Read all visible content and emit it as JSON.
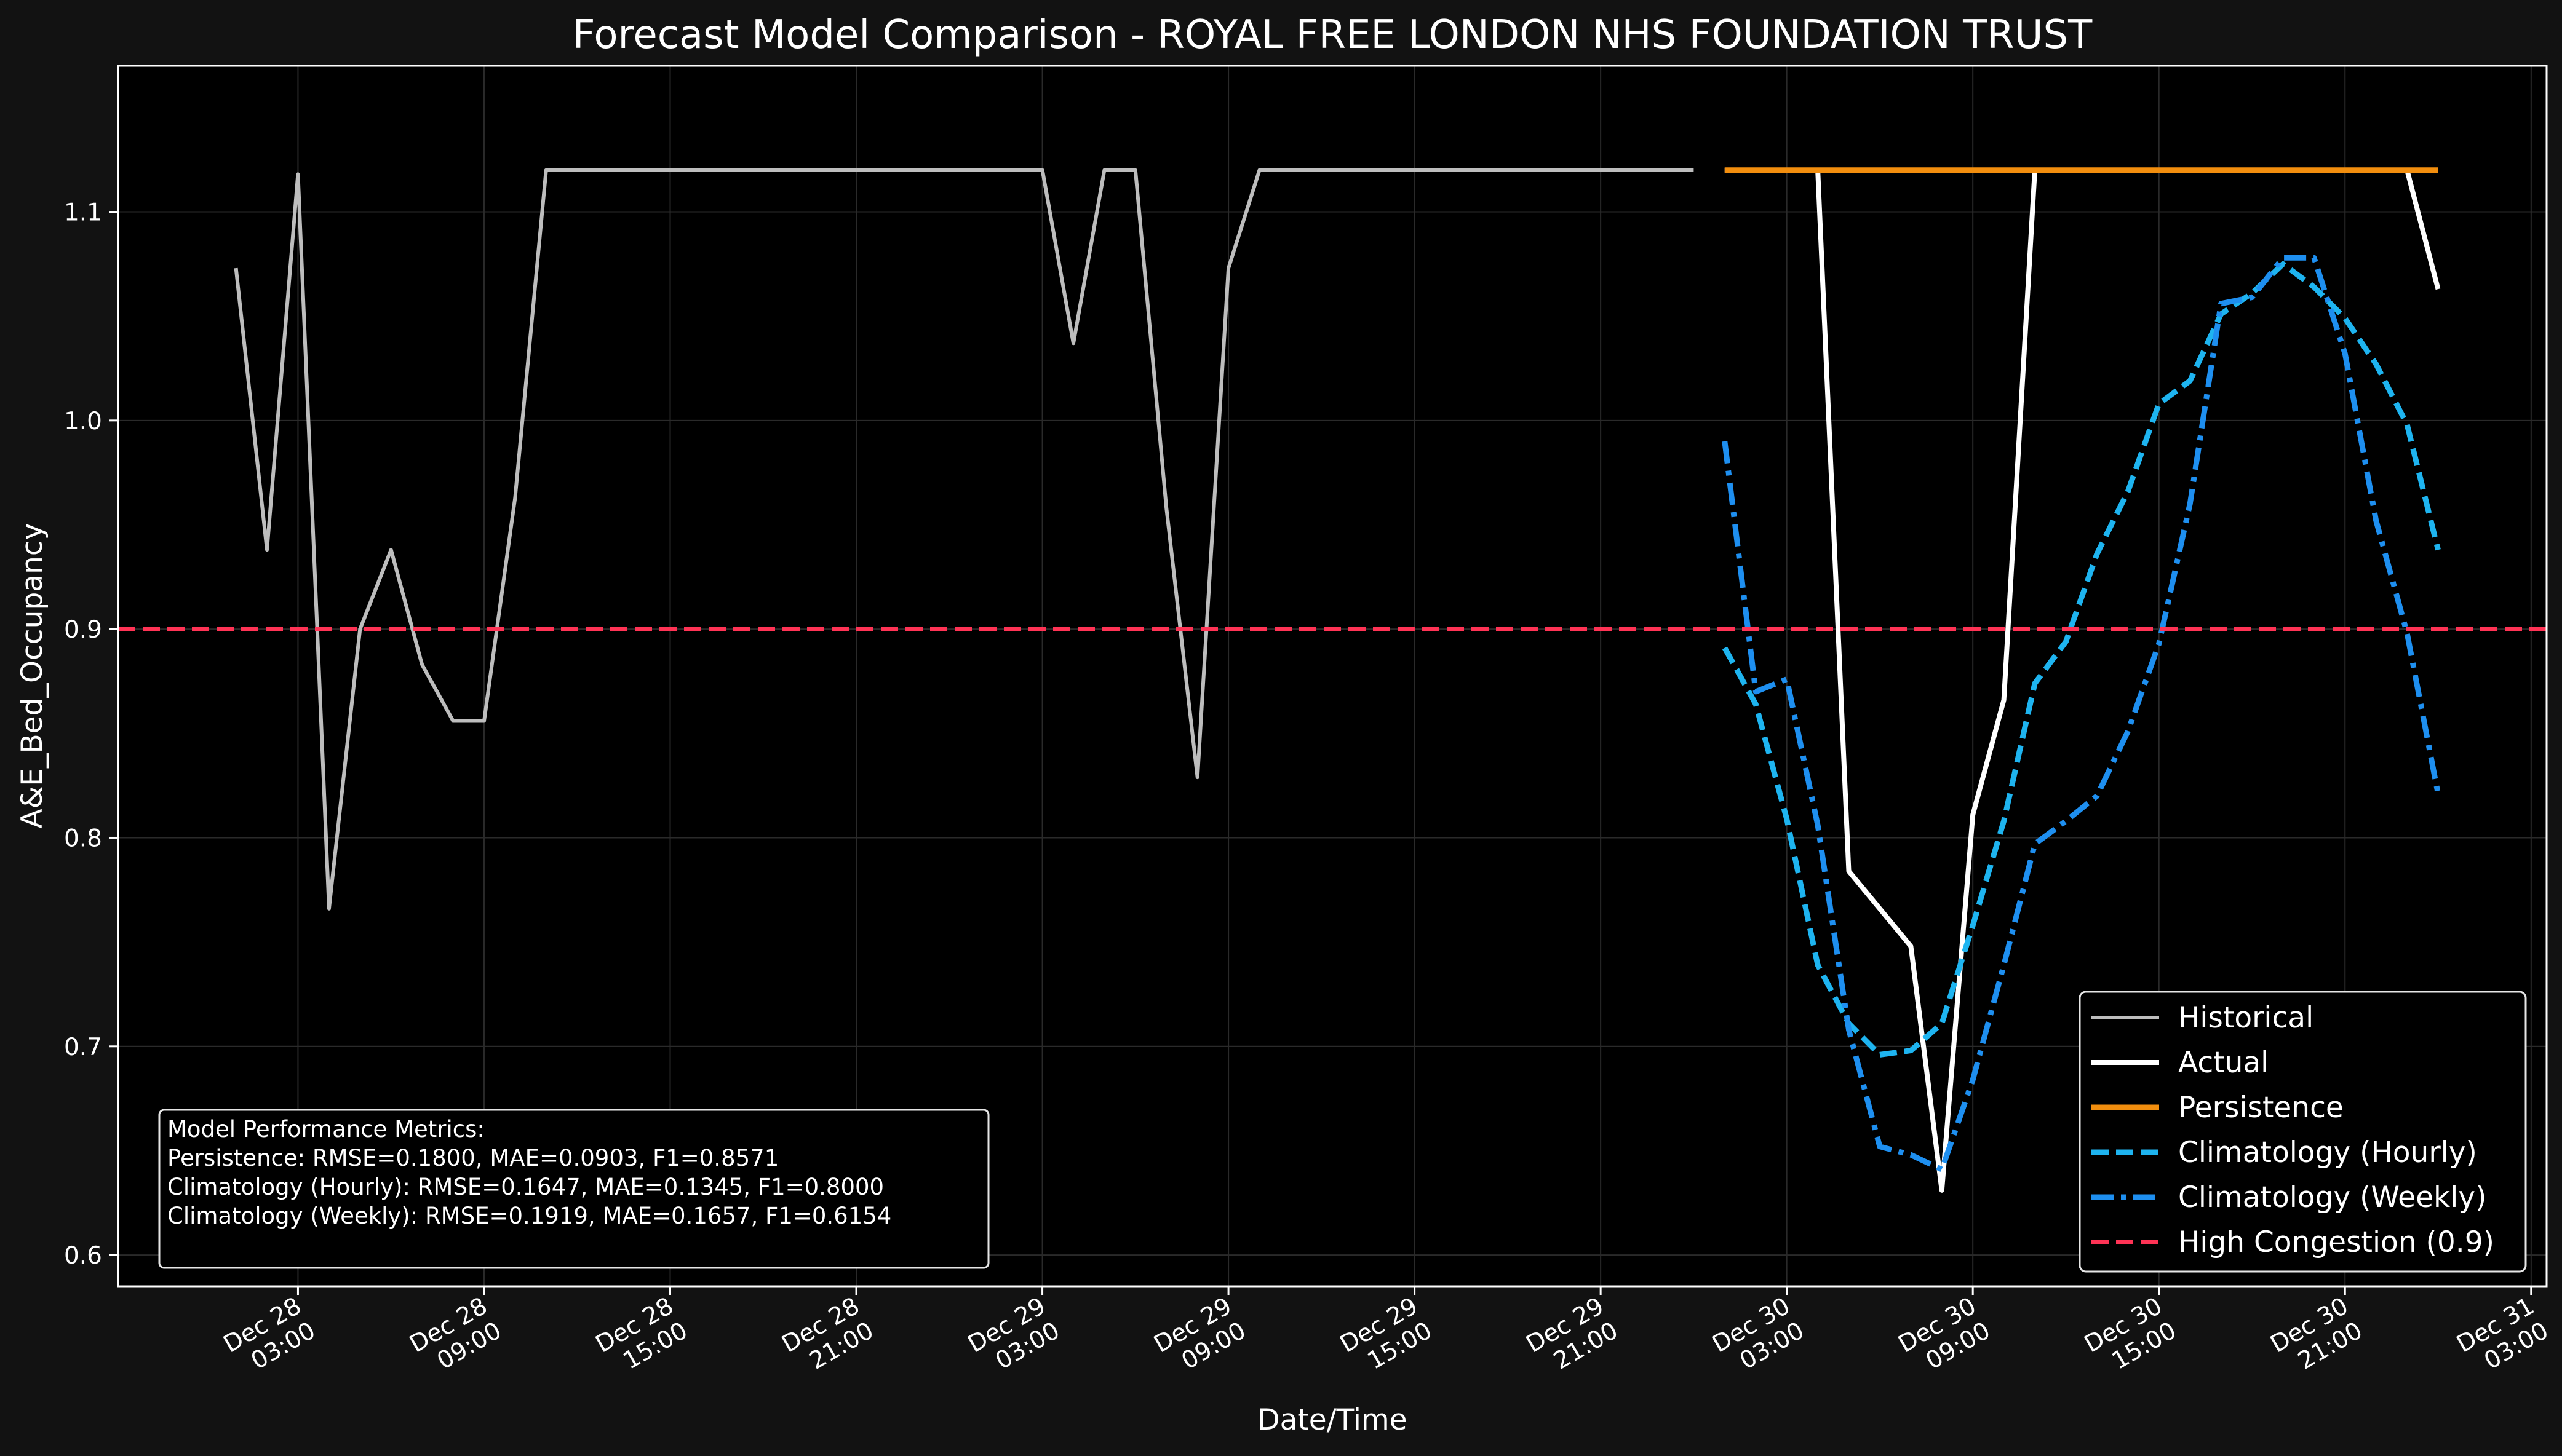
{
  "chart_data": {
    "type": "line",
    "title": "Forecast Model Comparison - ROYAL FREE LONDON NHS FOUNDATION TRUST",
    "xlabel": "Date/Time",
    "ylabel": "A&E_Bed_Occupancy",
    "ylim": [
      0.585,
      1.17
    ],
    "xlim_hours": [
      -2.8,
      75.5
    ],
    "grid": true,
    "legend_position": "lower-right",
    "x_ticks": [
      {
        "h": 3,
        "line1": "Dec 28",
        "line2": "03:00"
      },
      {
        "h": 9,
        "line1": "Dec 28",
        "line2": "09:00"
      },
      {
        "h": 15,
        "line1": "Dec 28",
        "line2": "15:00"
      },
      {
        "h": 21,
        "line1": "Dec 28",
        "line2": "21:00"
      },
      {
        "h": 27,
        "line1": "Dec 29",
        "line2": "03:00"
      },
      {
        "h": 33,
        "line1": "Dec 29",
        "line2": "09:00"
      },
      {
        "h": 39,
        "line1": "Dec 29",
        "line2": "15:00"
      },
      {
        "h": 45,
        "line1": "Dec 29",
        "line2": "21:00"
      },
      {
        "h": 51,
        "line1": "Dec 30",
        "line2": "03:00"
      },
      {
        "h": 57,
        "line1": "Dec 30",
        "line2": "09:00"
      },
      {
        "h": 63,
        "line1": "Dec 30",
        "line2": "15:00"
      },
      {
        "h": 69,
        "line1": "Dec 30",
        "line2": "21:00"
      },
      {
        "h": 75,
        "line1": "Dec 31",
        "line2": "03:00"
      }
    ],
    "y_ticks": [
      "0.6",
      "0.7",
      "0.8",
      "0.9",
      "1.0",
      "1.1"
    ],
    "series": [
      {
        "name": "Historical",
        "color": "#bdbdbd",
        "style": "solid",
        "width": 6,
        "x": [
          1,
          2,
          3,
          4,
          5,
          6,
          7,
          8,
          9,
          10,
          11,
          12,
          13,
          14,
          15,
          16,
          17,
          18,
          19,
          20,
          21,
          22,
          23,
          24,
          25,
          26,
          27,
          28,
          29,
          30,
          31,
          32,
          33,
          34,
          35,
          36,
          37,
          38,
          39,
          40,
          41,
          42,
          43,
          44,
          45,
          46,
          47,
          48
        ],
        "y": [
          1.073,
          0.938,
          1.118,
          0.766,
          0.9,
          0.938,
          0.883,
          0.856,
          0.856,
          0.963,
          1.12,
          1.12,
          1.12,
          1.12,
          1.12,
          1.12,
          1.12,
          1.12,
          1.12,
          1.12,
          1.12,
          1.12,
          1.12,
          1.12,
          1.12,
          1.12,
          1.12,
          1.037,
          1.12,
          1.12,
          0.958,
          0.829,
          1.073,
          1.12,
          1.12,
          1.12,
          1.12,
          1.12,
          1.12,
          1.12,
          1.12,
          1.12,
          1.12,
          1.12,
          1.12,
          1.12,
          1.12,
          1.12
        ]
      },
      {
        "name": "Actual",
        "color": "#ffffff",
        "style": "solid",
        "width": 8,
        "x": [
          49,
          50,
          51,
          52,
          53,
          54,
          55,
          56,
          57,
          58,
          59,
          60,
          61,
          62,
          63,
          64,
          65,
          66,
          67,
          68,
          69,
          70,
          71,
          72
        ],
        "y": [
          1.12,
          1.12,
          1.12,
          1.12,
          0.784,
          0.766,
          0.748,
          0.631,
          0.811,
          0.866,
          1.12,
          1.12,
          1.12,
          1.12,
          1.12,
          1.12,
          1.12,
          1.12,
          1.12,
          1.12,
          1.12,
          1.12,
          1.12,
          1.063
        ]
      },
      {
        "name": "Persistence",
        "color": "#f28e0e",
        "style": "solid",
        "width": 9,
        "x": [
          49,
          72
        ],
        "y": [
          1.12,
          1.12
        ]
      },
      {
        "name": "Climatology (Hourly)",
        "color": "#1eb4f0",
        "style": "dashed",
        "width": 9,
        "x": [
          49,
          50,
          51,
          52,
          53,
          54,
          55,
          56,
          57,
          58,
          59,
          60,
          61,
          62,
          63,
          64,
          65,
          66,
          67,
          68,
          69,
          70,
          71,
          72
        ],
        "y": [
          0.891,
          0.864,
          0.809,
          0.739,
          0.711,
          0.696,
          0.698,
          0.711,
          0.758,
          0.808,
          0.874,
          0.894,
          0.936,
          0.966,
          1.008,
          1.019,
          1.051,
          1.061,
          1.075,
          1.064,
          1.049,
          1.027,
          0.998,
          0.938
        ]
      },
      {
        "name": "Climatology (Weekly)",
        "color": "#1e8ff0",
        "style": "dashdot",
        "width": 9,
        "x": [
          49,
          50,
          51,
          52,
          53,
          54,
          55,
          56,
          57,
          58,
          59,
          60,
          61,
          62,
          63,
          64,
          65,
          66,
          67,
          68,
          69,
          70,
          71,
          72
        ],
        "y": [
          0.99,
          0.87,
          0.876,
          0.806,
          0.708,
          0.652,
          0.648,
          0.641,
          0.684,
          0.739,
          0.797,
          0.808,
          0.82,
          0.851,
          0.893,
          0.96,
          1.056,
          1.059,
          1.078,
          1.078,
          1.032,
          0.952,
          0.898,
          0.821
        ]
      },
      {
        "name": "High Congestion (0.9)",
        "color": "#ff3355",
        "style": "dashed",
        "width": 7,
        "x": [
          -2.8,
          75.5
        ],
        "y": [
          0.9,
          0.9
        ]
      }
    ]
  },
  "metrics": {
    "title": "Model Performance Metrics:",
    "lines": [
      "Persistence: RMSE=0.1800, MAE=0.0903, F1=0.8571",
      "Climatology (Hourly): RMSE=0.1647, MAE=0.1345, F1=0.8000",
      "Climatology (Weekly): RMSE=0.1919, MAE=0.1657, F1=0.6154"
    ]
  }
}
